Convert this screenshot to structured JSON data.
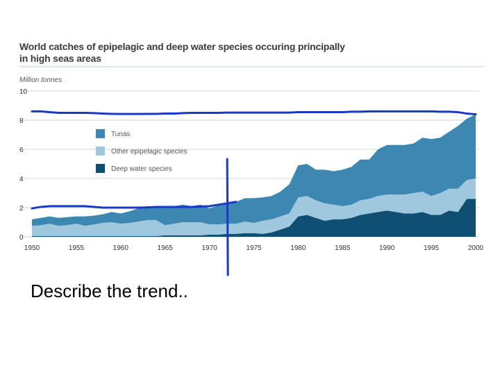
{
  "slide": {
    "prompt": "Describe the trend.."
  },
  "chart_data": {
    "type": "area",
    "stacked": true,
    "title": "World catches of epipelagic and deep water species occuring principally in high seas areas",
    "title_line1": "World catches of epipelagic and deep water species occuring principally",
    "title_line2": "in high seas areas",
    "ylabel": "Million tonnes",
    "xlabel": "",
    "ylim": [
      0,
      10
    ],
    "xlim": [
      1950,
      2000
    ],
    "yticks": [
      "0",
      "2",
      "4",
      "6",
      "8",
      "10"
    ],
    "xticks": [
      "1950",
      "1955",
      "1960",
      "1965",
      "1970",
      "1975",
      "1980",
      "1985",
      "1990",
      "1995",
      "2000"
    ],
    "legend_position": "top-left inside plot",
    "x": [
      1950,
      1951,
      1952,
      1953,
      1954,
      1955,
      1956,
      1957,
      1958,
      1959,
      1960,
      1961,
      1962,
      1963,
      1964,
      1965,
      1966,
      1967,
      1968,
      1969,
      1970,
      1971,
      1972,
      1973,
      1974,
      1975,
      1976,
      1977,
      1978,
      1979,
      1980,
      1981,
      1982,
      1983,
      1984,
      1985,
      1986,
      1987,
      1988,
      1989,
      1990,
      1991,
      1992,
      1993,
      1994,
      1995,
      1996,
      1997,
      1998,
      1999,
      2000
    ],
    "series": [
      {
        "name": "Deep water species",
        "color": "#0e4f73",
        "values": [
          0.05,
          0.05,
          0.05,
          0.05,
          0.05,
          0.05,
          0.05,
          0.05,
          0.05,
          0.05,
          0.05,
          0.05,
          0.05,
          0.05,
          0.05,
          0.1,
          0.1,
          0.1,
          0.1,
          0.1,
          0.15,
          0.15,
          0.2,
          0.2,
          0.25,
          0.25,
          0.2,
          0.3,
          0.5,
          0.7,
          1.4,
          1.5,
          1.3,
          1.1,
          1.2,
          1.2,
          1.3,
          1.5,
          1.6,
          1.7,
          1.8,
          1.7,
          1.6,
          1.6,
          1.7,
          1.5,
          1.5,
          1.8,
          1.7,
          2.6,
          2.6
        ]
      },
      {
        "name": "Other epipelagic species",
        "color": "#9fc7de",
        "values": [
          0.7,
          0.75,
          0.85,
          0.7,
          0.75,
          0.85,
          0.7,
          0.8,
          0.9,
          0.95,
          0.85,
          0.9,
          1.0,
          1.1,
          1.1,
          0.7,
          0.8,
          0.9,
          0.9,
          0.9,
          0.7,
          0.7,
          0.7,
          0.7,
          0.8,
          0.7,
          0.9,
          0.9,
          0.9,
          0.9,
          1.3,
          1.3,
          1.2,
          1.2,
          1.0,
          0.9,
          0.9,
          1.0,
          1.0,
          1.1,
          1.1,
          1.2,
          1.3,
          1.4,
          1.4,
          1.3,
          1.5,
          1.5,
          1.6,
          1.3,
          1.4
        ]
      },
      {
        "name": "Tunas",
        "color": "#3d88b3",
        "values": [
          0.45,
          0.5,
          0.5,
          0.55,
          0.55,
          0.5,
          0.65,
          0.6,
          0.6,
          0.7,
          0.7,
          0.8,
          0.9,
          0.95,
          0.85,
          1.3,
          1.2,
          1.2,
          1.1,
          1.2,
          1.1,
          1.3,
          1.4,
          1.5,
          1.6,
          1.7,
          1.6,
          1.6,
          1.7,
          2.0,
          2.2,
          2.2,
          2.1,
          2.3,
          2.3,
          2.5,
          2.6,
          2.8,
          2.7,
          3.2,
          3.4,
          3.4,
          3.4,
          3.4,
          3.7,
          3.9,
          3.8,
          3.9,
          4.3,
          4.2,
          4.4
        ]
      }
    ]
  },
  "annotations": {
    "upper_line_color": "#1a38c8",
    "lower_line_color": "#1a38c8",
    "vertical_marker_color": "#1a38c8",
    "vertical_marker_year": 1972,
    "upper_line_values": [
      8.6,
      8.6,
      8.55,
      8.5,
      8.5,
      8.5,
      8.5,
      8.48,
      8.45,
      8.43,
      8.42,
      8.42,
      8.42,
      8.43,
      8.43,
      8.45,
      8.45,
      8.48,
      8.5,
      8.5,
      8.5,
      8.5,
      8.52,
      8.52,
      8.52,
      8.52,
      8.52,
      8.52,
      8.52,
      8.52,
      8.55,
      8.55,
      8.55,
      8.55,
      8.55,
      8.55,
      8.58,
      8.58,
      8.6,
      8.6,
      8.6,
      8.6,
      8.6,
      8.6,
      8.6,
      8.6,
      8.58,
      8.58,
      8.55,
      8.45,
      8.4
    ],
    "lower_line_values": [
      1.95,
      2.05,
      2.1,
      2.1,
      2.1,
      2.1,
      2.1,
      2.05,
      2.0,
      2.0,
      2.0,
      2.0,
      2.0,
      2.02,
      2.05,
      2.05,
      2.05,
      2.05,
      2.05,
      2.07,
      2.1,
      2.2,
      2.3,
      2.4
    ]
  }
}
